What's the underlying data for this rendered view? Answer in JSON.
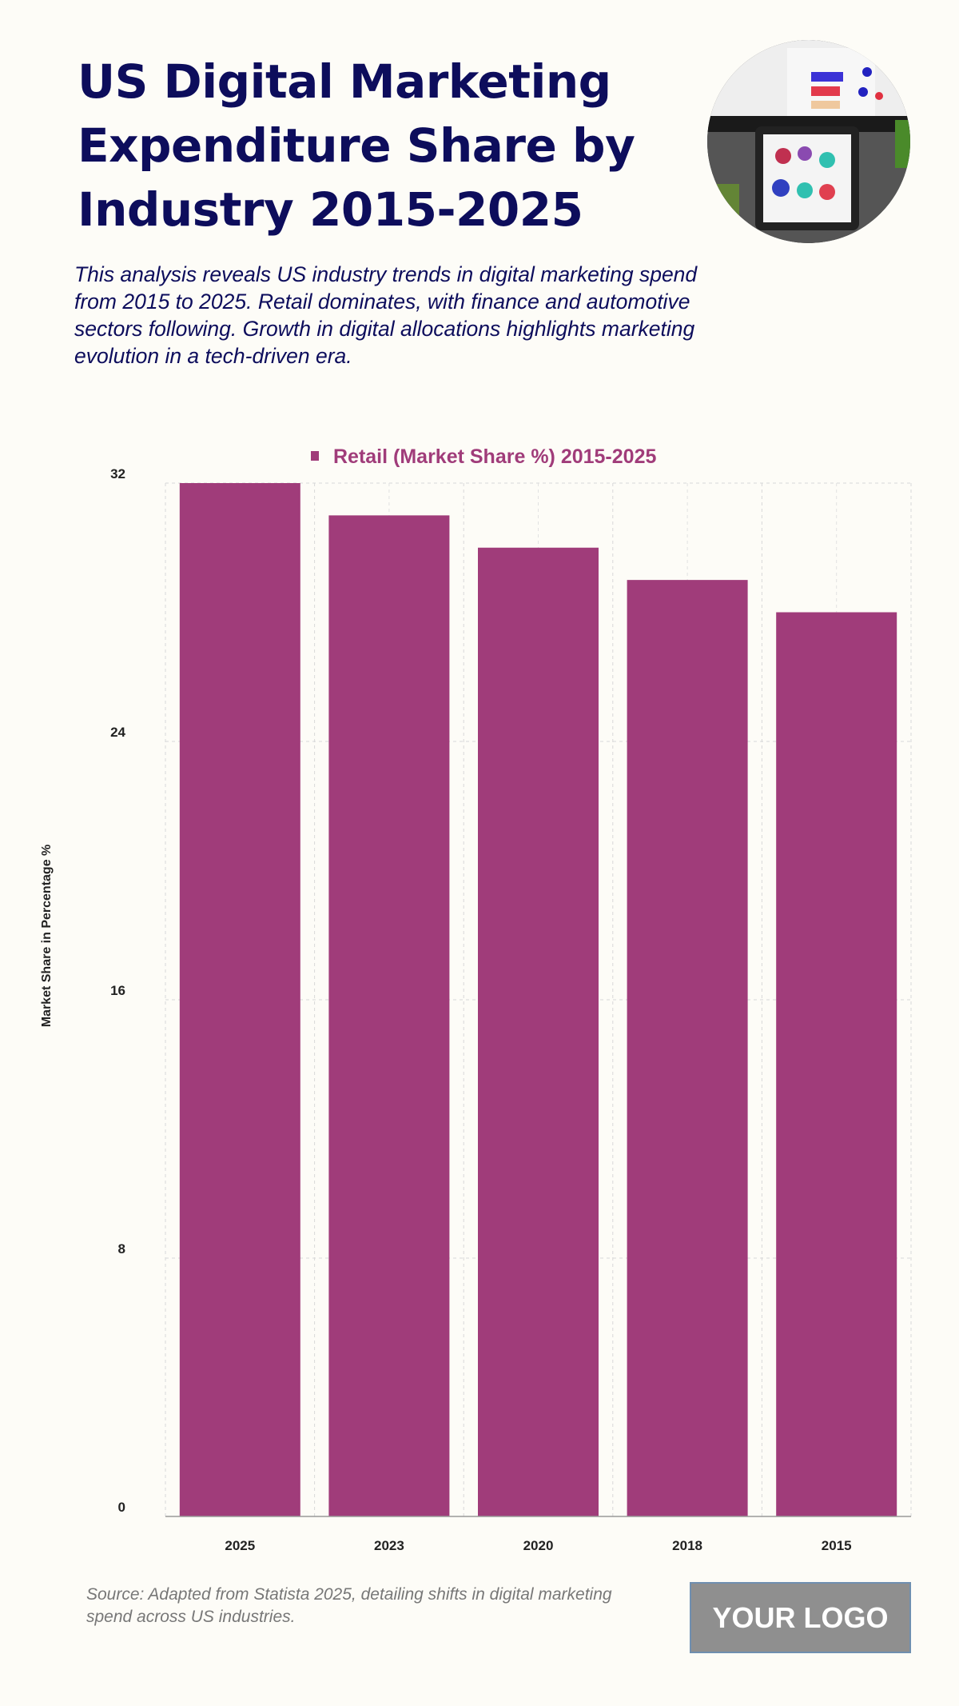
{
  "header": {
    "title": "US Digital Marketing Expenditure Share by Industry 2015-2025",
    "subtitle": "This analysis reveals US industry trends in digital marketing spend from 2015 to 2025. Retail dominates, with finance and automotive sectors following. Growth in digital allocations highlights marketing evolution in a tech-driven era."
  },
  "chart_data": {
    "type": "bar",
    "categories": [
      "2025",
      "2023",
      "2020",
      "2018",
      "2015"
    ],
    "series": [
      {
        "name": "Retail (Market Share %) 2015-2025",
        "values": [
          32,
          31,
          30,
          29,
          28
        ],
        "color": "#a03c7a"
      }
    ],
    "ylabel": "Market Share in Percentage %",
    "xlabel": "",
    "ylim": [
      0,
      32
    ],
    "yticks": [
      0,
      8,
      16,
      24,
      32
    ],
    "grid": true,
    "legend_position": "top-center"
  },
  "footer": {
    "source": "Source: Adapted from Statista 2025, detailing shifts in digital marketing spend across US industries.",
    "logo": "YOUR LOGO"
  }
}
